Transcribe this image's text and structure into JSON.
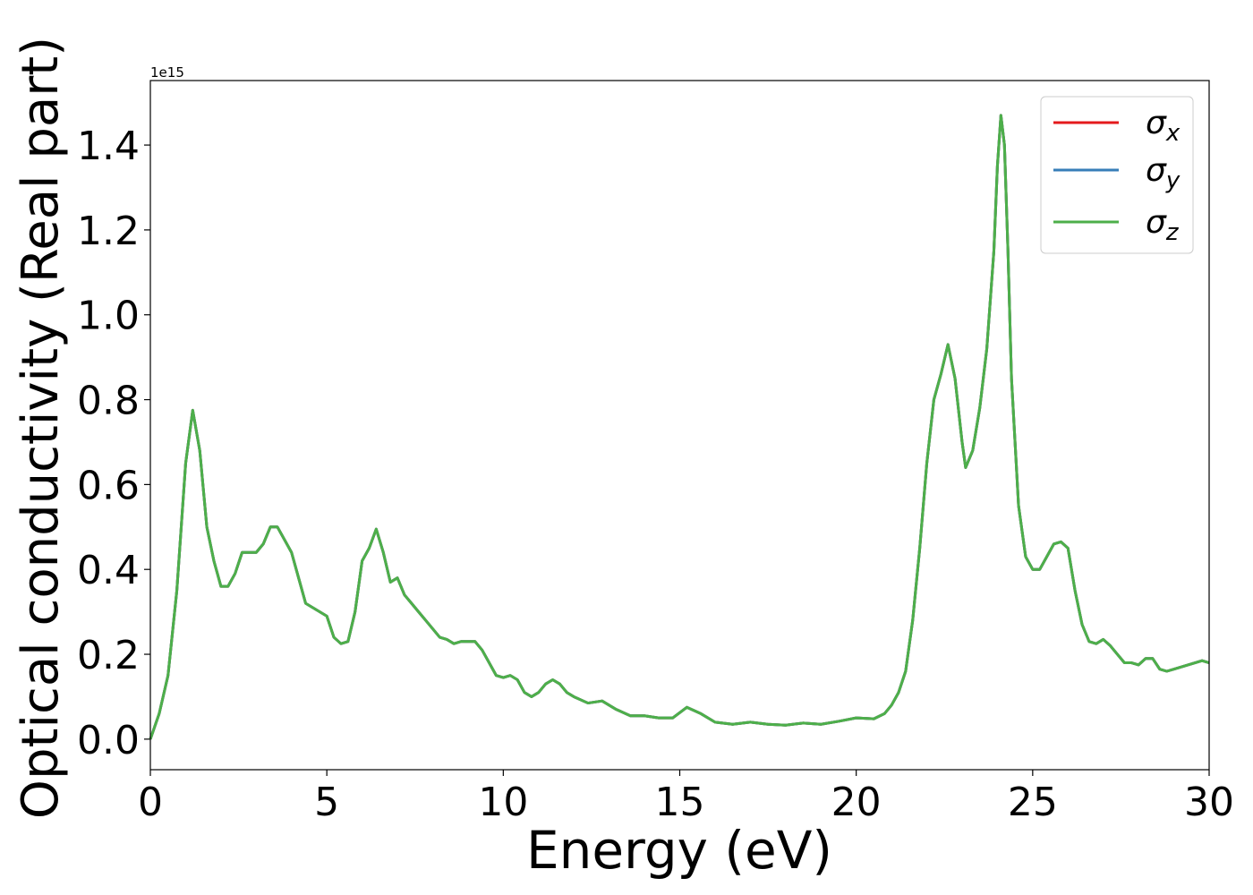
{
  "chart_data": {
    "type": "line",
    "xlabel": "Energy (eV)",
    "ylabel": "Optical conductivity (Real part)",
    "offset_label": "1e15",
    "x": [
      0,
      0.25,
      0.5,
      0.75,
      1.0,
      1.2,
      1.4,
      1.6,
      1.8,
      2.0,
      2.2,
      2.4,
      2.6,
      2.8,
      3.0,
      3.2,
      3.4,
      3.6,
      3.8,
      4.0,
      4.2,
      4.4,
      4.6,
      4.8,
      5.0,
      5.2,
      5.4,
      5.6,
      5.8,
      6.0,
      6.2,
      6.4,
      6.6,
      6.8,
      7.0,
      7.2,
      7.4,
      7.6,
      7.8,
      8.0,
      8.2,
      8.4,
      8.6,
      8.8,
      9.0,
      9.2,
      9.4,
      9.6,
      9.8,
      10.0,
      10.2,
      10.4,
      10.6,
      10.8,
      11.0,
      11.2,
      11.4,
      11.6,
      11.8,
      12.0,
      12.4,
      12.8,
      13.2,
      13.6,
      14.0,
      14.4,
      14.8,
      15.2,
      15.6,
      16.0,
      16.5,
      17.0,
      17.5,
      18.0,
      18.5,
      19.0,
      19.5,
      20.0,
      20.5,
      20.8,
      21.0,
      21.2,
      21.4,
      21.6,
      21.8,
      22.0,
      22.2,
      22.4,
      22.6,
      22.8,
      23.0,
      23.1,
      23.3,
      23.5,
      23.7,
      23.9,
      24.0,
      24.1,
      24.2,
      24.3,
      24.4,
      24.6,
      24.8,
      25.0,
      25.2,
      25.4,
      25.6,
      25.8,
      26.0,
      26.2,
      26.4,
      26.6,
      26.8,
      27.0,
      27.2,
      27.4,
      27.6,
      27.8,
      28.0,
      28.2,
      28.4,
      28.6,
      28.8,
      29.0,
      29.4,
      29.8,
      30.0
    ],
    "series": [
      {
        "name": "σx",
        "color": "#e41a1c",
        "values": [
          0.0,
          0.06,
          0.15,
          0.35,
          0.65,
          0.775,
          0.68,
          0.5,
          0.42,
          0.36,
          0.36,
          0.39,
          0.44,
          0.44,
          0.44,
          0.46,
          0.5,
          0.5,
          0.47,
          0.44,
          0.38,
          0.32,
          0.31,
          0.3,
          0.29,
          0.24,
          0.225,
          0.23,
          0.3,
          0.42,
          0.45,
          0.495,
          0.44,
          0.37,
          0.38,
          0.34,
          0.32,
          0.3,
          0.28,
          0.26,
          0.24,
          0.235,
          0.225,
          0.23,
          0.23,
          0.23,
          0.21,
          0.18,
          0.15,
          0.145,
          0.15,
          0.14,
          0.11,
          0.1,
          0.11,
          0.13,
          0.14,
          0.13,
          0.11,
          0.1,
          0.085,
          0.09,
          0.07,
          0.055,
          0.055,
          0.05,
          0.05,
          0.075,
          0.06,
          0.04,
          0.035,
          0.04,
          0.035,
          0.033,
          0.038,
          0.035,
          0.042,
          0.05,
          0.048,
          0.06,
          0.08,
          0.11,
          0.16,
          0.28,
          0.45,
          0.65,
          0.8,
          0.86,
          0.93,
          0.85,
          0.7,
          0.64,
          0.68,
          0.78,
          0.92,
          1.15,
          1.35,
          1.47,
          1.4,
          1.15,
          0.85,
          0.55,
          0.43,
          0.4,
          0.4,
          0.43,
          0.46,
          0.465,
          0.45,
          0.35,
          0.27,
          0.23,
          0.225,
          0.235,
          0.22,
          0.2,
          0.18,
          0.18,
          0.175,
          0.19,
          0.19,
          0.165,
          0.16,
          0.165,
          0.175,
          0.185,
          0.18
        ]
      },
      {
        "name": "σy",
        "color": "#377eb8",
        "values": [
          0.0,
          0.06,
          0.15,
          0.35,
          0.65,
          0.775,
          0.68,
          0.5,
          0.42,
          0.36,
          0.36,
          0.39,
          0.44,
          0.44,
          0.44,
          0.46,
          0.5,
          0.5,
          0.47,
          0.44,
          0.38,
          0.32,
          0.31,
          0.3,
          0.29,
          0.24,
          0.225,
          0.23,
          0.3,
          0.42,
          0.45,
          0.495,
          0.44,
          0.37,
          0.38,
          0.34,
          0.32,
          0.3,
          0.28,
          0.26,
          0.24,
          0.235,
          0.225,
          0.23,
          0.23,
          0.23,
          0.21,
          0.18,
          0.15,
          0.145,
          0.15,
          0.14,
          0.11,
          0.1,
          0.11,
          0.13,
          0.14,
          0.13,
          0.11,
          0.1,
          0.085,
          0.09,
          0.07,
          0.055,
          0.055,
          0.05,
          0.05,
          0.075,
          0.06,
          0.04,
          0.035,
          0.04,
          0.035,
          0.033,
          0.038,
          0.035,
          0.042,
          0.05,
          0.048,
          0.06,
          0.08,
          0.11,
          0.16,
          0.28,
          0.45,
          0.65,
          0.8,
          0.86,
          0.93,
          0.85,
          0.7,
          0.64,
          0.68,
          0.78,
          0.92,
          1.15,
          1.35,
          1.47,
          1.4,
          1.15,
          0.85,
          0.55,
          0.43,
          0.4,
          0.4,
          0.43,
          0.46,
          0.465,
          0.45,
          0.35,
          0.27,
          0.23,
          0.225,
          0.235,
          0.22,
          0.2,
          0.18,
          0.18,
          0.175,
          0.19,
          0.19,
          0.165,
          0.16,
          0.165,
          0.175,
          0.185,
          0.18
        ]
      },
      {
        "name": "σz",
        "color": "#4daf4a",
        "values": [
          0.0,
          0.06,
          0.15,
          0.35,
          0.65,
          0.775,
          0.68,
          0.5,
          0.42,
          0.36,
          0.36,
          0.39,
          0.44,
          0.44,
          0.44,
          0.46,
          0.5,
          0.5,
          0.47,
          0.44,
          0.38,
          0.32,
          0.31,
          0.3,
          0.29,
          0.24,
          0.225,
          0.23,
          0.3,
          0.42,
          0.45,
          0.495,
          0.44,
          0.37,
          0.38,
          0.34,
          0.32,
          0.3,
          0.28,
          0.26,
          0.24,
          0.235,
          0.225,
          0.23,
          0.23,
          0.23,
          0.21,
          0.18,
          0.15,
          0.145,
          0.15,
          0.14,
          0.11,
          0.1,
          0.11,
          0.13,
          0.14,
          0.13,
          0.11,
          0.1,
          0.085,
          0.09,
          0.07,
          0.055,
          0.055,
          0.05,
          0.05,
          0.075,
          0.06,
          0.04,
          0.035,
          0.04,
          0.035,
          0.033,
          0.038,
          0.035,
          0.042,
          0.05,
          0.048,
          0.06,
          0.08,
          0.11,
          0.16,
          0.28,
          0.45,
          0.65,
          0.8,
          0.86,
          0.93,
          0.85,
          0.7,
          0.64,
          0.68,
          0.78,
          0.92,
          1.15,
          1.35,
          1.47,
          1.4,
          1.15,
          0.85,
          0.55,
          0.43,
          0.4,
          0.4,
          0.43,
          0.46,
          0.465,
          0.45,
          0.35,
          0.27,
          0.23,
          0.225,
          0.235,
          0.22,
          0.2,
          0.18,
          0.18,
          0.175,
          0.19,
          0.19,
          0.165,
          0.16,
          0.165,
          0.175,
          0.185,
          0.18
        ]
      }
    ],
    "xlim": [
      0,
      30
    ],
    "xticks": [
      0,
      5,
      10,
      15,
      20,
      25,
      30
    ],
    "ylim": [
      -0.072,
      1.552
    ],
    "yticks": [
      {
        "value": 0,
        "label": "0.0"
      },
      0.2,
      0.4,
      0.6,
      0.8,
      {
        "value": 1,
        "label": "1.0"
      },
      1.2,
      1.4
    ],
    "grid": false,
    "legend": "upper right"
  }
}
